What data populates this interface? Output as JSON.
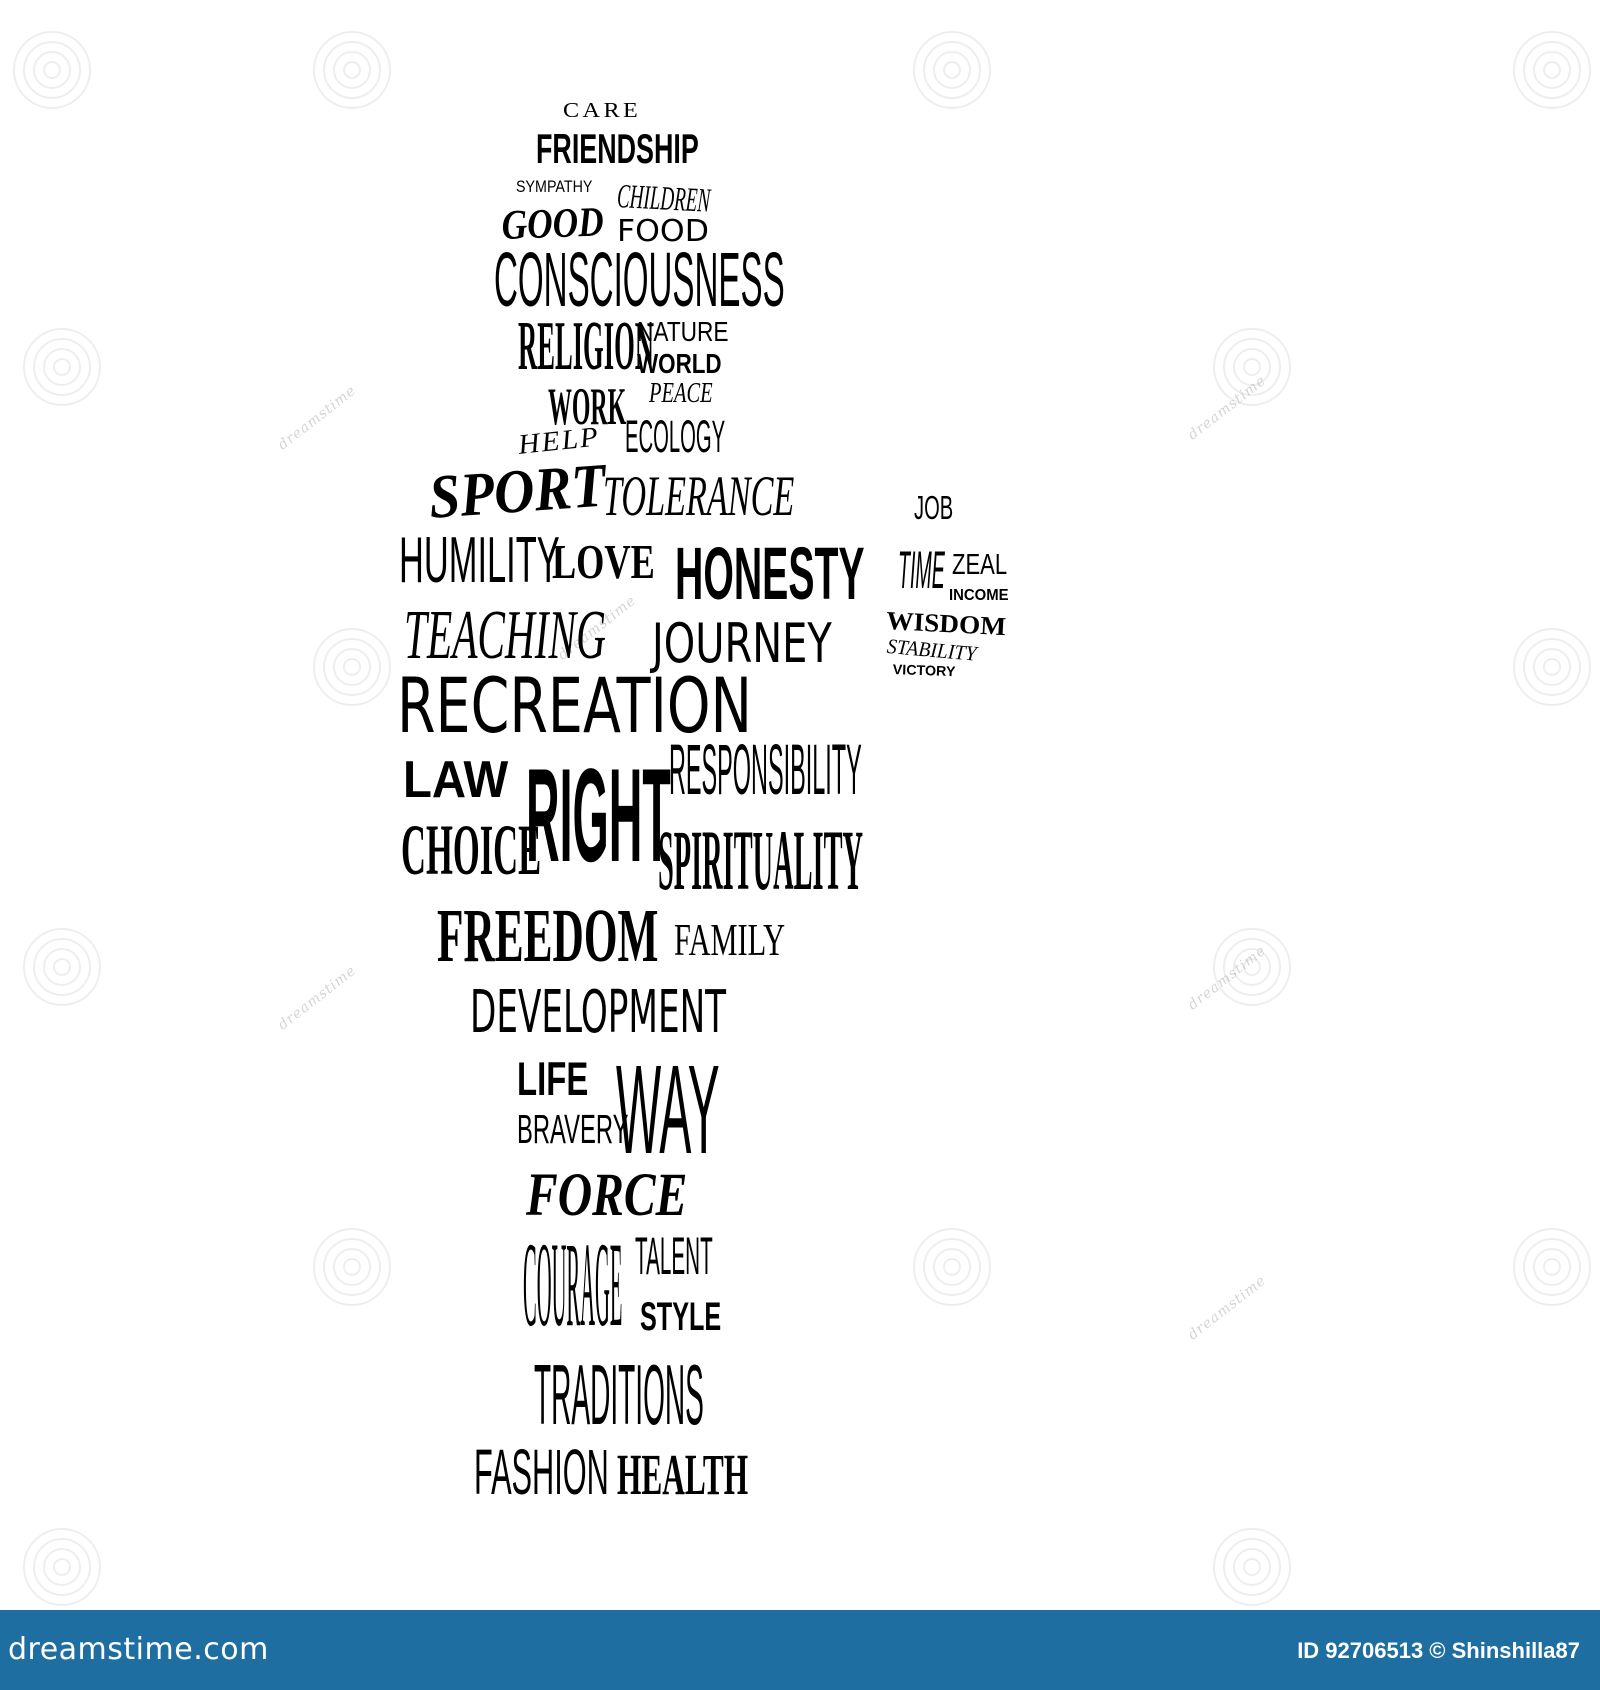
{
  "words": {
    "care": "CARE",
    "friendship": "FRIENDSHIP",
    "sympathy": "SYMPATHY",
    "children": "CHILDREN",
    "good": "GOOD",
    "food": "FOOD",
    "consciousness": "CONSCIOUSNESS",
    "religion": "RELIGION",
    "nature": "NATURE",
    "world": "WORLD",
    "work": "WORK",
    "peace": "PEACE",
    "ecology": "ECOLOGY",
    "help": "HELP",
    "sport": "SPORT",
    "tolerance": "TOLERANCE",
    "humility": "HUMILITY",
    "love": "LOVE",
    "honesty": "HONESTY",
    "teaching": "TEACHING",
    "journey": "JOURNEY",
    "recreation": "RECREATION",
    "law": "LAW",
    "right": "RIGHT",
    "responsibility": "RESPONSIBILITY",
    "choice": "CHOICE",
    "spirituality": "SPIRITUALITY",
    "freedom": "FREEDOM",
    "family": "FAMILY",
    "development": "DEVELOPMENT",
    "life": "LIFE",
    "way": "WAY",
    "bravery": "BRAVERY",
    "force": "FORCE",
    "courage": "COURAGE",
    "talent": "TALENT",
    "style": "STYLE",
    "traditions": "TRADITIONS",
    "fashion": "FASHION",
    "health": "HEALTH",
    "job": "JOB",
    "time": "TIME",
    "zeal": "ZEAL",
    "income": "INCOME",
    "wisdom": "WISDOM",
    "stability": "STABILITY",
    "victory": "VICTORY"
  },
  "watermark": {
    "text": "dreamstime"
  },
  "footer": {
    "logo": "dreamstime.com",
    "meta": "ID 92706513 © Shinshilla87",
    "bg_color": "#1e6ea1"
  }
}
